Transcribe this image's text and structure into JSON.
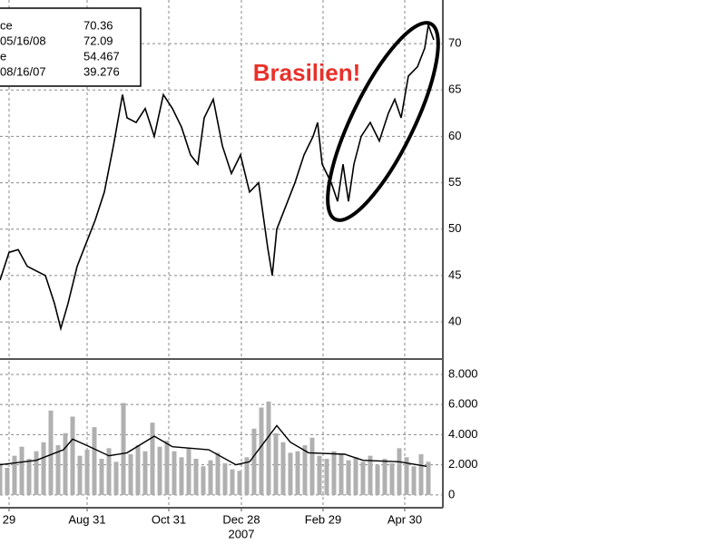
{
  "chart_data": [
    {
      "type": "line",
      "color": "#000000",
      "x": [
        0,
        5,
        10,
        15,
        20,
        25,
        30,
        33.5,
        37.5,
        42.5,
        47.5,
        52.5,
        57.5,
        62.5,
        67.5,
        70,
        75,
        80,
        85,
        90,
        95,
        100,
        105,
        109,
        112.5,
        117.5,
        122.5,
        127.5,
        132.5,
        137.5,
        142.5,
        147.5,
        150,
        152.5,
        157.5,
        162.5,
        167.5,
        172.5,
        175,
        177.5,
        182.5,
        186,
        189,
        192,
        195,
        199,
        204,
        209,
        214,
        217.5,
        221,
        225,
        230,
        234,
        236,
        239
      ],
      "values": [
        44.5,
        47.5,
        47.8,
        46,
        45.5,
        45,
        42,
        39.3,
        42,
        46,
        48.5,
        51,
        54,
        59,
        64.5,
        62,
        61.5,
        63,
        60,
        64.5,
        63,
        61,
        58,
        57,
        62,
        64,
        59,
        56,
        58,
        54,
        55,
        48,
        45,
        50,
        52.5,
        55,
        58,
        60,
        61.5,
        57,
        55,
        53,
        57,
        53,
        57,
        60,
        61.5,
        59.5,
        62.5,
        64,
        62,
        66.5,
        67.5,
        69.5,
        72,
        70.4
      ],
      "ylim": [
        36.1,
        74.7
      ],
      "yticks": [
        40,
        45,
        50,
        55,
        60,
        65,
        70
      ],
      "grid": true,
      "xlim": [
        0,
        240
      ],
      "xticks": [
        {
          "value": 5,
          "label": "29"
        },
        {
          "value": 48,
          "label": "Aug 31"
        },
        {
          "value": 93,
          "label": "Oct 31"
        },
        {
          "value": 133,
          "label": "Dec 28"
        },
        {
          "value": 178,
          "label": "Feb 29"
        },
        {
          "value": 223,
          "label": "Apr 30"
        }
      ],
      "year_label": "2007",
      "annotation": "Brasilien!",
      "legend_rows": [
        [
          "ce",
          70.36
        ],
        [
          "05/16/08",
          72.09
        ],
        [
          "e",
          54.467
        ],
        [
          "08/16/07",
          39.276
        ]
      ]
    },
    {
      "type": "bar",
      "color": "#b0b0b0",
      "line_color": "#000000",
      "x": [
        0,
        4,
        8,
        12,
        16,
        20,
        24,
        28,
        32,
        36,
        40,
        44,
        48,
        52,
        56,
        60,
        64,
        68,
        72,
        76,
        80,
        84,
        88,
        92,
        96,
        100,
        104,
        108,
        112,
        116,
        120,
        124,
        128,
        132,
        136,
        140,
        144,
        148,
        152,
        156,
        160,
        164,
        168,
        172,
        176,
        180,
        184,
        188,
        192,
        196,
        200,
        204,
        208,
        212,
        216,
        220,
        224,
        228,
        232,
        236
      ],
      "values": [
        2100,
        1800,
        2600,
        3200,
        2400,
        2900,
        3500,
        5600,
        3300,
        4100,
        5200,
        2600,
        3000,
        4500,
        2400,
        3100,
        2200,
        6100,
        2700,
        3300,
        2900,
        4800,
        3200,
        3600,
        2900,
        2500,
        3100,
        2400,
        1900,
        2300,
        2800,
        2100,
        1700,
        1600,
        2500,
        4400,
        5800,
        6200,
        4100,
        3500,
        2800,
        2900,
        3300,
        3800,
        2600,
        2400,
        2900,
        2700,
        2300,
        2500,
        2200,
        2600,
        2000,
        2400,
        2100,
        3100,
        2500,
        1900,
        2700,
        2200
      ],
      "average_x": [
        0,
        20,
        35,
        40,
        47.5,
        60,
        70,
        85,
        95,
        115,
        130,
        137.5,
        147.5,
        152.5,
        160,
        170,
        190,
        200,
        220,
        235
      ],
      "average": [
        2000,
        2300,
        3000,
        3700,
        3300,
        2600,
        2800,
        3900,
        3200,
        3000,
        2000,
        2200,
        3800,
        4600,
        3500,
        2800,
        2700,
        2300,
        2200,
        1900
      ],
      "ylim": [
        -850,
        8900
      ],
      "yticks": [
        0,
        {
          "value": 2000,
          "label": "2.000"
        },
        {
          "value": 4000,
          "label": "4.000"
        },
        {
          "value": 6000,
          "label": "6.000"
        },
        {
          "value": 8000,
          "label": "8.000"
        }
      ],
      "grid": true
    }
  ]
}
